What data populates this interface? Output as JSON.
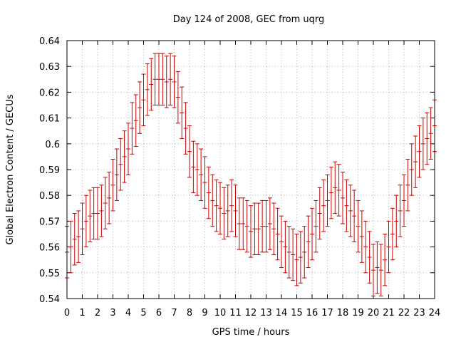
{
  "chart_data": {
    "type": "scatter",
    "title": "Day 124 of 2008, GEC from uqrg",
    "xlabel": "GPS time / hours",
    "ylabel": "Global Electron Content / GECUs",
    "xlim": [
      0,
      24
    ],
    "ylim": [
      0.54,
      0.64
    ],
    "x_ticks": [
      "0",
      "1",
      "2",
      "3",
      "4",
      "5",
      "6",
      "7",
      "8",
      "9",
      "10",
      "11",
      "12",
      "13",
      "14",
      "15",
      "16",
      "17",
      "18",
      "19",
      "20",
      "21",
      "22",
      "23",
      "24"
    ],
    "y_ticks": [
      "0.54",
      "0.55",
      "0.56",
      "0.57",
      "0.58",
      "0.59",
      "0.6",
      "0.61",
      "0.62",
      "0.63",
      "0.64"
    ],
    "grid": true,
    "error_bars": true,
    "series_color": "#cc0000",
    "series": [
      {
        "x": [
          0,
          0.25,
          0.5,
          0.75,
          1,
          1.25,
          1.5,
          1.75,
          2,
          2.25,
          2.5,
          2.75,
          3,
          3.25,
          3.5,
          3.75,
          4,
          4.25,
          4.5,
          4.75,
          5,
          5.25,
          5.5,
          5.75,
          6,
          6.25,
          6.5,
          6.75,
          7,
          7.25,
          7.5,
          7.75,
          8,
          8.25,
          8.5,
          8.75,
          9,
          9.25,
          9.5,
          9.75,
          10,
          10.25,
          10.5,
          10.75,
          11,
          11.25,
          11.5,
          11.75,
          12,
          12.25,
          12.5,
          12.75,
          13,
          13.25,
          13.5,
          13.75,
          14,
          14.25,
          14.5,
          14.75,
          15,
          15.25,
          15.5,
          15.75,
          16,
          16.25,
          16.5,
          16.75,
          17,
          17.25,
          17.5,
          17.75,
          18,
          18.25,
          18.5,
          18.75,
          19,
          19.25,
          19.5,
          19.75,
          20,
          20.25,
          20.5,
          20.75,
          21,
          21.25,
          21.5,
          21.75,
          22,
          22.25,
          22.5,
          22.75,
          23,
          23.25,
          23.5,
          23.75,
          24
        ],
        "y": [
          0.558,
          0.56,
          0.563,
          0.564,
          0.567,
          0.57,
          0.572,
          0.573,
          0.573,
          0.574,
          0.577,
          0.579,
          0.584,
          0.588,
          0.592,
          0.595,
          0.598,
          0.606,
          0.609,
          0.614,
          0.617,
          0.621,
          0.623,
          0.625,
          0.625,
          0.625,
          0.624,
          0.625,
          0.624,
          0.618,
          0.612,
          0.606,
          0.597,
          0.591,
          0.59,
          0.588,
          0.585,
          0.581,
          0.578,
          0.576,
          0.575,
          0.573,
          0.574,
          0.576,
          0.574,
          0.569,
          0.569,
          0.568,
          0.566,
          0.567,
          0.567,
          0.568,
          0.568,
          0.569,
          0.567,
          0.565,
          0.562,
          0.56,
          0.558,
          0.557,
          0.555,
          0.556,
          0.558,
          0.562,
          0.565,
          0.568,
          0.573,
          0.576,
          0.578,
          0.581,
          0.583,
          0.582,
          0.579,
          0.576,
          0.574,
          0.572,
          0.568,
          0.564,
          0.56,
          0.556,
          0.551,
          0.552,
          0.551,
          0.555,
          0.56,
          0.565,
          0.57,
          0.574,
          0.578,
          0.584,
          0.59,
          0.593,
          0.597,
          0.6,
          0.602,
          0.604,
          0.607
        ],
        "err": [
          0.01,
          0.01,
          0.01,
          0.01,
          0.01,
          0.01,
          0.01,
          0.01,
          0.01,
          0.01,
          0.01,
          0.01,
          0.01,
          0.01,
          0.01,
          0.01,
          0.01,
          0.01,
          0.01,
          0.01,
          0.01,
          0.01,
          0.01,
          0.01,
          0.01,
          0.01,
          0.01,
          0.01,
          0.01,
          0.01,
          0.01,
          0.01,
          0.01,
          0.01,
          0.01,
          0.01,
          0.01,
          0.01,
          0.01,
          0.01,
          0.01,
          0.01,
          0.01,
          0.01,
          0.01,
          0.01,
          0.01,
          0.01,
          0.01,
          0.01,
          0.01,
          0.01,
          0.01,
          0.01,
          0.01,
          0.01,
          0.01,
          0.01,
          0.01,
          0.01,
          0.01,
          0.01,
          0.01,
          0.01,
          0.01,
          0.01,
          0.01,
          0.01,
          0.01,
          0.01,
          0.01,
          0.01,
          0.01,
          0.01,
          0.01,
          0.01,
          0.01,
          0.01,
          0.01,
          0.01,
          0.01,
          0.01,
          0.01,
          0.01,
          0.01,
          0.01,
          0.01,
          0.01,
          0.01,
          0.01,
          0.01,
          0.01,
          0.01,
          0.01,
          0.01,
          0.01,
          0.01
        ]
      }
    ]
  }
}
